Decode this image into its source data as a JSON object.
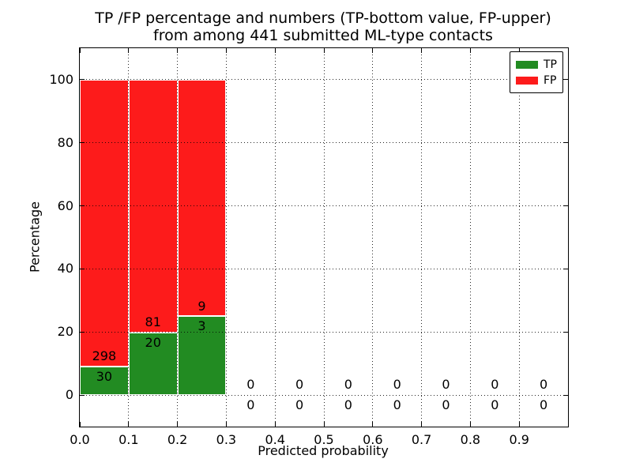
{
  "figure": {
    "title_line1": "TP /FP percentage and numbers (TP-bottom value, FP-upper)",
    "title_line2": "from among 441 submitted ML-type contacts"
  },
  "chart_data": {
    "type": "bar",
    "stacked": true,
    "title": "TP /FP percentage and numbers (TP-bottom value, FP-upper)\nfrom among 441 submitted ML-type contacts",
    "xlabel": "Predicted probability",
    "ylabel": "Percentage",
    "total_submitted": 441,
    "xlim": [
      0.0,
      1.0
    ],
    "ylim": [
      -10,
      110
    ],
    "bin_edges": [
      0.0,
      0.1,
      0.2,
      0.3,
      0.4,
      0.5,
      0.6,
      0.7,
      0.8,
      0.9,
      1.0
    ],
    "xticks": [
      0.0,
      0.1,
      0.2,
      0.3,
      0.4,
      0.5,
      0.6,
      0.7,
      0.8,
      0.9
    ],
    "xtick_labels": [
      "0.0",
      "0.1",
      "0.2",
      "0.3",
      "0.4",
      "0.5",
      "0.6",
      "0.7",
      "0.8",
      "0.9"
    ],
    "yticks": [
      0,
      20,
      40,
      60,
      80,
      100
    ],
    "ytick_labels": [
      "0",
      "20",
      "40",
      "60",
      "80",
      "100"
    ],
    "grid": {
      "visible": true,
      "style": "dotted",
      "color": "#000000",
      "axisbelow": false
    },
    "series": [
      {
        "name": "TP",
        "color": "#228b22",
        "counts": [
          30,
          20,
          3,
          0,
          0,
          0,
          0,
          0,
          0,
          0
        ],
        "percentages": [
          9.1,
          19.8,
          25.0,
          0,
          0,
          0,
          0,
          0,
          0,
          0
        ]
      },
      {
        "name": "FP",
        "color": "#fd1b1b",
        "counts": [
          298,
          81,
          9,
          0,
          0,
          0,
          0,
          0,
          0,
          0
        ],
        "percentages": [
          90.9,
          80.2,
          75.0,
          0,
          0,
          0,
          0,
          0,
          0,
          0
        ]
      }
    ],
    "legend": {
      "position": "upper right",
      "entries": [
        {
          "label": "TP",
          "color": "#228b22"
        },
        {
          "label": "FP",
          "color": "#fd1b1b"
        }
      ]
    }
  }
}
